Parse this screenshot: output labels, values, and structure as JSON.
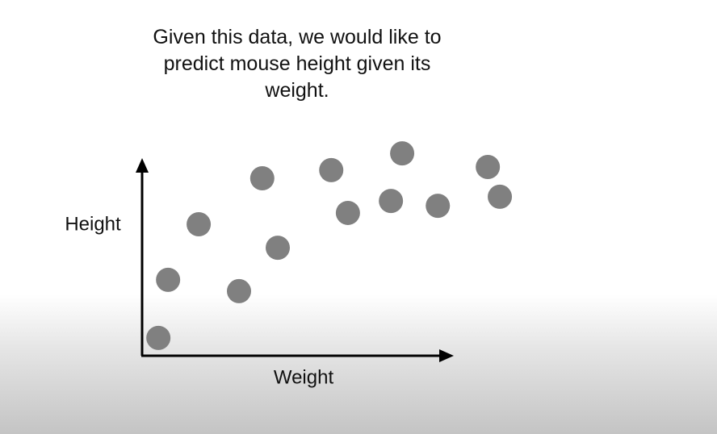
{
  "chart_data": {
    "type": "scatter",
    "title": "Given this data, we would like to predict mouse height given its weight.",
    "x_label": "Weight",
    "y_label": "Height",
    "x": [
      4.2,
      6.7,
      14.6,
      25.0,
      31.0,
      35.0,
      48.8,
      53.1,
      64.2,
      67.1,
      76.3,
      89.2,
      92.3
    ],
    "values": [
      8.5,
      36.2,
      62.7,
      30.8,
      84.6,
      51.5,
      88.5,
      68.1,
      73.8,
      96.5,
      71.5,
      90.0,
      75.8
    ],
    "color": "#808080",
    "xlim": [
      0,
      100
    ],
    "ylim": [
      0,
      100
    ]
  }
}
